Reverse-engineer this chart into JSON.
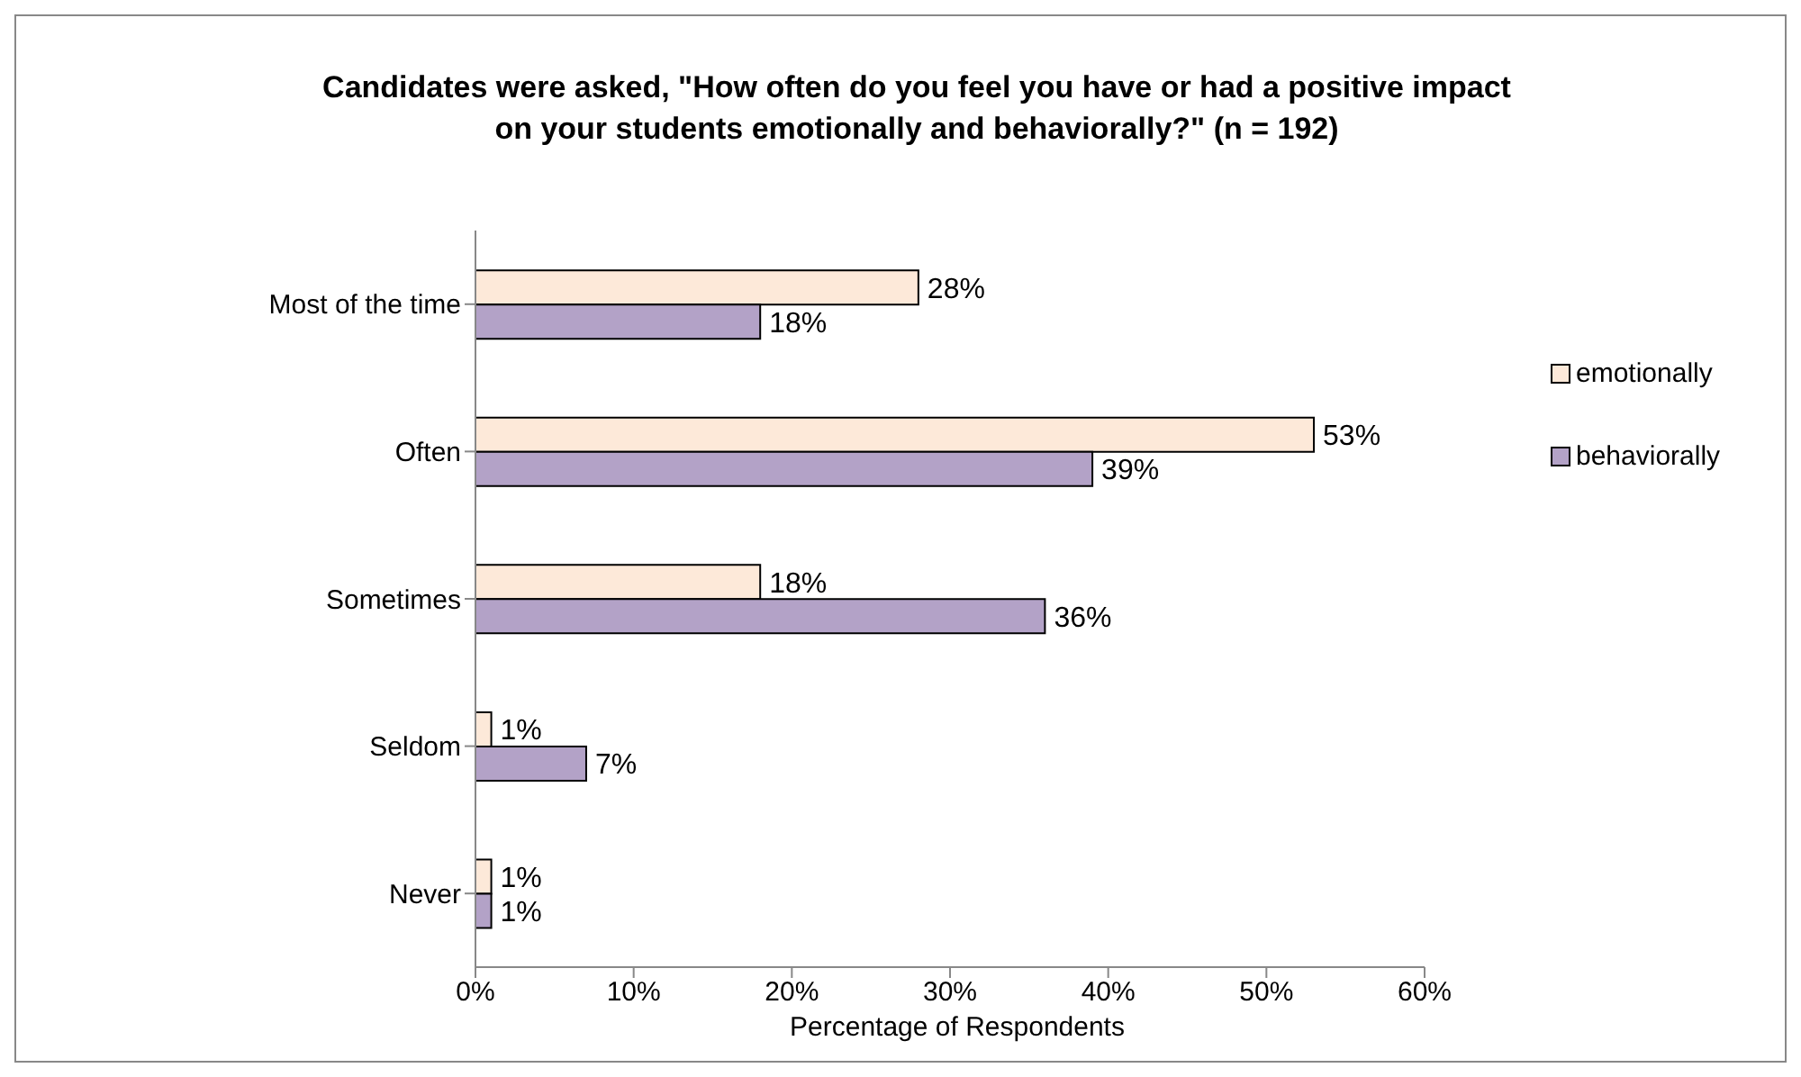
{
  "chart_data": {
    "type": "bar",
    "orientation": "horizontal",
    "title": "Candidates were asked, \"How often do you feel you have or had a positive impact on your students emotionally and behaviorally?\" (n = 192)",
    "xlabel": "Percentage of Respondents",
    "categories": [
      "Most of the time",
      "Often",
      "Sometimes",
      "Seldom",
      "Never"
    ],
    "series": [
      {
        "name": "emotionally",
        "color": "#fde9d9",
        "values": [
          28,
          53,
          18,
          1,
          1
        ],
        "value_labels": [
          "28%",
          "53%",
          "18%",
          "1%",
          "1%"
        ]
      },
      {
        "name": "behaviorally",
        "color": "#b3a2c7",
        "values": [
          18,
          39,
          36,
          7,
          1
        ],
        "value_labels": [
          "18%",
          "39%",
          "36%",
          "7%",
          "1%"
        ]
      }
    ],
    "xlim": [
      0,
      60
    ],
    "xticks": [
      {
        "value": 0,
        "label": "0%"
      },
      {
        "value": 10,
        "label": "10%"
      },
      {
        "value": 20,
        "label": "20%"
      },
      {
        "value": 30,
        "label": "30%"
      },
      {
        "value": 40,
        "label": "40%"
      },
      {
        "value": 50,
        "label": "50%"
      },
      {
        "value": 60,
        "label": "60%"
      }
    ],
    "grid": false,
    "legend": "right"
  }
}
